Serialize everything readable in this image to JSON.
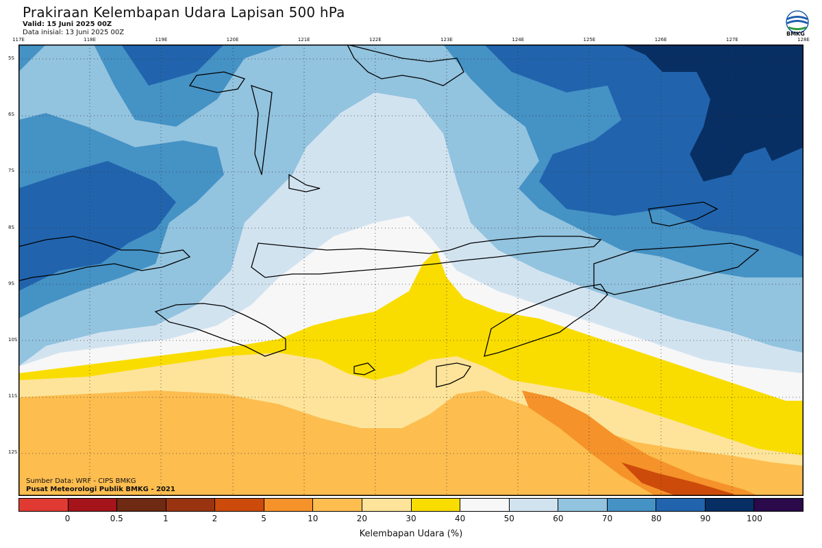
{
  "header": {
    "title": "Prakiraan Kelembapan Udara Lapisan 500 hPa",
    "valid": "Valid: 15 Juni 2025 00Z",
    "init": "Data inisial: 13 Juni 2025 00Z",
    "logo_text": "BMKG"
  },
  "axes": {
    "lon_labels": [
      "117E",
      "118E",
      "119E",
      "120E",
      "121E",
      "122E",
      "123E",
      "124E",
      "125E",
      "126E",
      "127E",
      "128E"
    ],
    "lat_labels": [
      "5S",
      "6S",
      "7S",
      "8S",
      "9S",
      "10S",
      "11S",
      "12S"
    ]
  },
  "credits": {
    "source": "Sumber Data: WRF - CIPS BMKG",
    "org": "Pusat Meteorologi Publik BMKG - 2021"
  },
  "colorbar": {
    "label": "Kelembapan Udara (%)",
    "ticks": [
      "0",
      "0.5",
      "1",
      "2",
      "5",
      "10",
      "20",
      "30",
      "40",
      "50",
      "60",
      "70",
      "80",
      "90",
      "100"
    ],
    "colors": [
      "#e03a33",
      "#a5131b",
      "#6e2a12",
      "#9a3410",
      "#cc4b0a",
      "#f5922a",
      "#fdbd4f",
      "#fde49a",
      "#f9dd00",
      "#f7f7f7",
      "#d2e3f0",
      "#92c3df",
      "#4592c5",
      "#2164ad",
      "#082f63",
      "#2a0a4a"
    ]
  },
  "map": {
    "lon_range": [
      117,
      128
    ],
    "lat_range": [
      -4.8,
      -13.0
    ],
    "grid": "dotted",
    "field": "relative humidity 500 hPa"
  }
}
